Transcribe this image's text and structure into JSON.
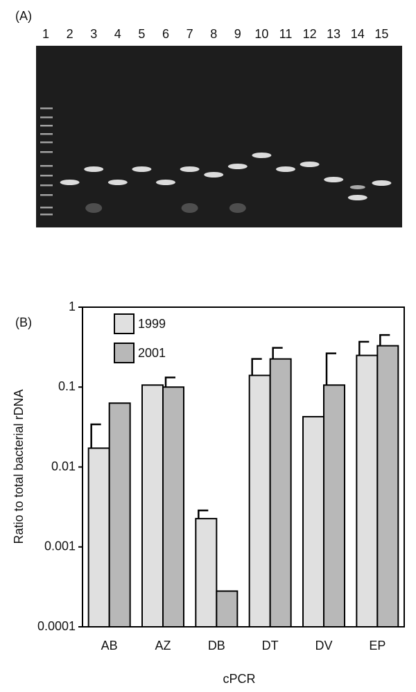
{
  "panel_a": {
    "label": "(A)",
    "lanes": [
      1,
      2,
      3,
      4,
      5,
      6,
      7,
      8,
      9,
      10,
      11,
      12,
      13,
      14,
      15
    ]
  },
  "chart_data": {
    "type": "bar",
    "panel_label": "(B)",
    "x_label": "cPCR",
    "y_label": "Ratio to total bacterial rDNA",
    "categories": [
      "AB",
      "AZ",
      "DB",
      "DT",
      "DV",
      "EP"
    ],
    "series": [
      {
        "name": "1999",
        "color": "#e0e0e0",
        "values": [
          0.0172,
          0.106,
          0.00226,
          0.14,
          0.0426,
          0.249
        ],
        "errors": [
          0.017,
          null,
          0.0006,
          0.085,
          null,
          0.12
        ]
      },
      {
        "name": "2001",
        "color": "#b8b8b8",
        "values": [
          0.063,
          0.1,
          0.00028,
          0.225,
          0.106,
          0.329
        ],
        "errors": [
          null,
          0.032,
          null,
          0.085,
          0.158,
          0.12
        ]
      }
    ],
    "log_scale": true,
    "ylim": [
      0.0001,
      1
    ],
    "yticks": [
      0.0001,
      0.001,
      0.01,
      0.1,
      1
    ],
    "grid": false,
    "legend": "upper left"
  }
}
